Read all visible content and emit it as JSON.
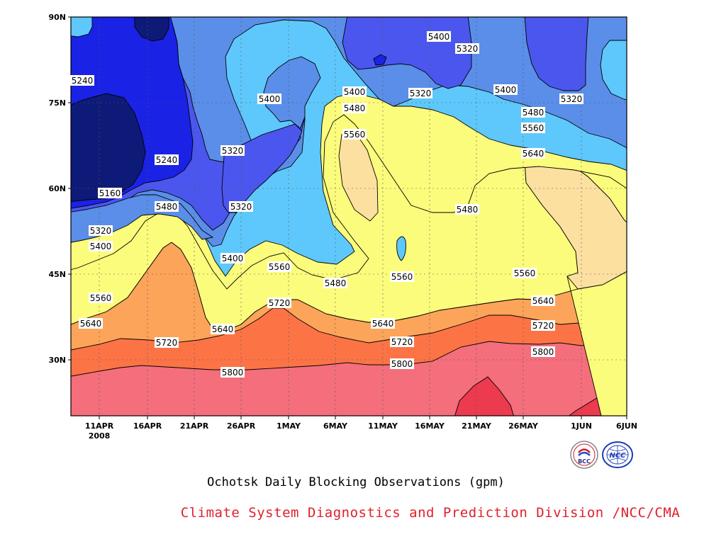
{
  "title": "Ochotsk Daily Blocking Observations (gpm)",
  "subtitle": "Climate System Diagnostics and Prediction Division /NCC/CMA",
  "logos": [
    {
      "name": "bcc-logo",
      "text": "BCC"
    },
    {
      "name": "ncc-logo",
      "text": "NCC"
    }
  ],
  "colors": {
    "5160": "#0e1a78",
    "5240": "#1a22e6",
    "5320": "#4b56ee",
    "5400": "#5a8ee8",
    "5480": "#5ec8fc",
    "5560": "#fcfc7c",
    "5640": "#fce0a0",
    "5720": "#fca45a",
    "5800": "#fc7446",
    "5880": "#f46e7c",
    "5960": "#ec3a4e"
  },
  "chart_data": {
    "type": "heatmap",
    "title": "Ochotsk Daily Blocking Observations (gpm)",
    "xlabel": "",
    "ylabel": "",
    "x_ticks": [
      "11APR",
      "16APR",
      "21APR",
      "26APR",
      "1MAY",
      "6MAY",
      "11MAY",
      "16MAY",
      "21MAY",
      "26MAY",
      "1JUN",
      "6JUN"
    ],
    "x_year_label": "2008",
    "y_ticks": [
      "90N",
      "75N",
      "60N",
      "45N",
      "30N"
    ],
    "ylim": [
      20,
      90
    ],
    "contour_levels": [
      5160,
      5240,
      5320,
      5400,
      5480,
      5560,
      5640,
      5720,
      5800
    ],
    "grid": true,
    "contour_labels": [
      "5240",
      "5160",
      "5240",
      "5320",
      "5400",
      "5480",
      "5560",
      "5640",
      "5720",
      "5800",
      "5400",
      "5320",
      "5320",
      "5400",
      "5560",
      "5720",
      "5640",
      "5400",
      "5480",
      "5560",
      "5480",
      "5400",
      "5320",
      "5320",
      "5560",
      "5640",
      "5720",
      "5800",
      "5480",
      "5400",
      "5480",
      "5560",
      "5640",
      "5560",
      "5640",
      "5720",
      "5800",
      "5320"
    ]
  }
}
